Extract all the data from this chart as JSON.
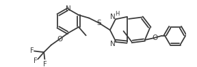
{
  "bg_color": "#ffffff",
  "line_color": "#3a3a3a",
  "lw": 1.3,
  "figsize": [
    2.88,
    0.99
  ],
  "dpi": 100,
  "xlim": [
    0,
    288
  ],
  "ylim": [
    0,
    99
  ]
}
